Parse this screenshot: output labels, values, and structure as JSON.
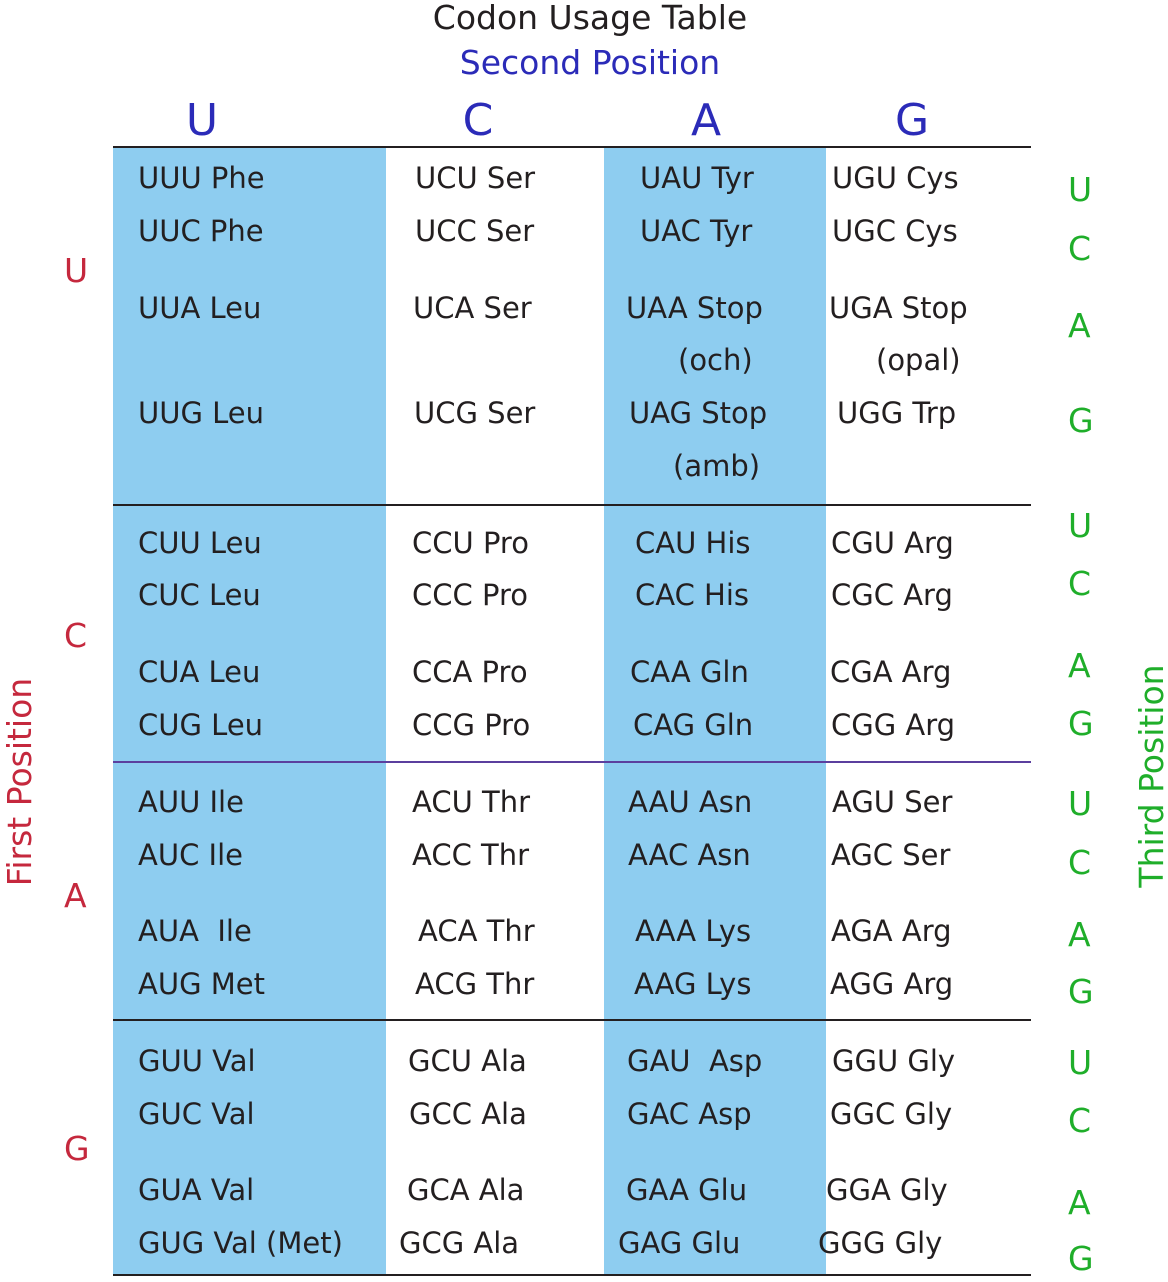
{
  "title": "Codon Usage Table",
  "subtitle": "Second Position",
  "first_axis_label": "First Position",
  "third_axis_label": "Third Position",
  "second_letters": [
    "U",
    "C",
    "A",
    "G"
  ],
  "first_letters": [
    "U",
    "C",
    "A",
    "G"
  ],
  "third_letters": [
    [
      "U",
      "C",
      "A",
      "G"
    ],
    [
      "U",
      "C",
      "A",
      "G"
    ],
    [
      "U",
      "C",
      "A",
      "G"
    ],
    [
      "U",
      "C",
      "A",
      "G"
    ]
  ],
  "codons": [
    [
      [
        "UUU Phe",
        "UCU Ser",
        "UAU Tyr",
        "UGU Cys"
      ],
      [
        "UUC Phe",
        "UCC Ser",
        "UAC Tyr",
        "UGC Cys"
      ],
      [
        "UUA Leu",
        "UCA Ser",
        "UAA Stop",
        "UGA Stop"
      ],
      [
        "UUG Leu",
        "UCG Ser",
        "UAG Stop",
        "UGG Trp"
      ]
    ],
    [
      [
        "CUU Leu",
        "CCU Pro",
        "CAU His",
        "CGU Arg"
      ],
      [
        "CUC Leu",
        "CCC Pro",
        "CAC His",
        "CGC Arg"
      ],
      [
        "CUA Leu",
        "CCA Pro",
        "CAA Gln",
        "CGA Arg"
      ],
      [
        "CUG Leu",
        "CCG Pro",
        "CAG Gln",
        "CGG Arg"
      ]
    ],
    [
      [
        "AUU Ile",
        "ACU Thr",
        "AAU Asn",
        "AGU Ser"
      ],
      [
        "AUC Ile",
        "ACC Thr",
        "AAC Asn",
        "AGC Ser"
      ],
      [
        "AUA  Ile",
        "ACA Thr",
        "AAA Lys",
        "AGA Arg"
      ],
      [
        "AUG Met",
        "ACG Thr",
        "AAG Lys",
        "AGG Arg"
      ]
    ],
    [
      [
        "GUU Val",
        "GCU Ala",
        "GAU  Asp",
        "GGU Gly"
      ],
      [
        "GUC Val",
        "GCC Ala",
        "GAC Asp",
        "GGC Gly"
      ],
      [
        "GUA Val",
        "GCA Ala",
        "GAA Glu",
        "GGA Gly"
      ],
      [
        "GUG Val (Met)",
        "GCG Ala",
        "GAG Glu",
        "GGG Gly"
      ]
    ]
  ],
  "stop_notes": [
    "(och)",
    "(opal)",
    "(amb)"
  ],
  "colors": {
    "band": "#8ecdf0",
    "second_position": "#2b2bb8",
    "first_position": "#c5283d",
    "third_position": "#1fae2a",
    "text": "#231f20"
  }
}
